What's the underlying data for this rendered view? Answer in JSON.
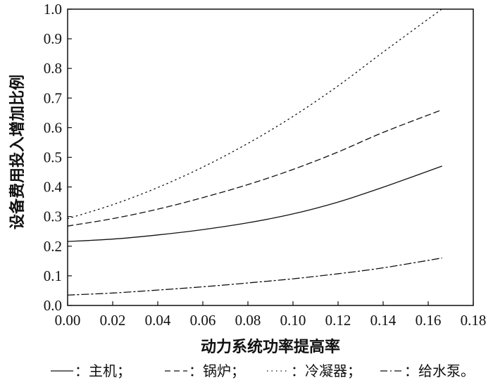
{
  "chart_data": {
    "type": "line",
    "xlabel": "动力系统功率提高率",
    "ylabel": "设备费用投入增加比例",
    "xlim": [
      0.0,
      0.18
    ],
    "ylim": [
      0.0,
      1.0
    ],
    "xticks": [
      "0.00",
      "0.02",
      "0.04",
      "0.06",
      "0.08",
      "0.10",
      "0.12",
      "0.14",
      "0.16",
      "0.18"
    ],
    "yticks": [
      "0.0",
      "0.1",
      "0.2",
      "0.3",
      "0.4",
      "0.5",
      "0.6",
      "0.7",
      "0.8",
      "0.9",
      "1.0"
    ],
    "grid": false,
    "legend_position": "bottom",
    "series": [
      {
        "name": "主机",
        "legend_label": "：主机；",
        "line_style": "solid",
        "x": [
          0.0,
          0.02,
          0.04,
          0.06,
          0.08,
          0.1,
          0.12,
          0.14,
          0.166
        ],
        "y": [
          0.216,
          0.224,
          0.238,
          0.256,
          0.279,
          0.309,
          0.349,
          0.399,
          0.47
        ]
      },
      {
        "name": "锅炉",
        "legend_label": "：锅炉；",
        "line_style": "dashed",
        "x": [
          0.0,
          0.02,
          0.04,
          0.06,
          0.08,
          0.1,
          0.12,
          0.14,
          0.166
        ],
        "y": [
          0.268,
          0.293,
          0.325,
          0.364,
          0.408,
          0.459,
          0.518,
          0.584,
          0.66
        ]
      },
      {
        "name": "冷凝器",
        "legend_label": "：冷凝器；",
        "line_style": "dotted",
        "x": [
          0.0,
          0.02,
          0.04,
          0.06,
          0.08,
          0.1,
          0.12,
          0.14,
          0.166
        ],
        "y": [
          0.293,
          0.34,
          0.398,
          0.467,
          0.547,
          0.638,
          0.741,
          0.855,
          1.0
        ]
      },
      {
        "name": "给水泵",
        "legend_label": "：给水泵。",
        "line_style": "dashdot",
        "x": [
          0.0,
          0.02,
          0.04,
          0.06,
          0.08,
          0.1,
          0.12,
          0.14,
          0.166
        ],
        "y": [
          0.035,
          0.042,
          0.052,
          0.063,
          0.076,
          0.09,
          0.107,
          0.127,
          0.16
        ]
      }
    ]
  }
}
